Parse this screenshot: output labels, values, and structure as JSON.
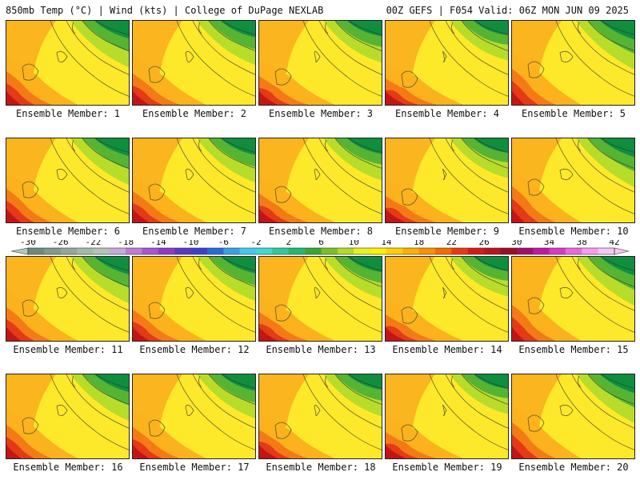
{
  "header": {
    "left": "850mb Temp (°C) | Wind (kts) | College of DuPage NEXLAB",
    "right": "00Z GEFS | F054 Valid: 06Z MON JUN 09 2025"
  },
  "panels": [
    {
      "label": "Ensemble Member: 1"
    },
    {
      "label": "Ensemble Member: 2"
    },
    {
      "label": "Ensemble Member: 3"
    },
    {
      "label": "Ensemble Member: 4"
    },
    {
      "label": "Ensemble Member: 5"
    },
    {
      "label": "Ensemble Member: 6"
    },
    {
      "label": "Ensemble Member: 7"
    },
    {
      "label": "Ensemble Member: 8"
    },
    {
      "label": "Ensemble Member: 9"
    },
    {
      "label": "Ensemble Member: 10"
    },
    {
      "label": "Ensemble Member: 11"
    },
    {
      "label": "Ensemble Member: 12"
    },
    {
      "label": "Ensemble Member: 13"
    },
    {
      "label": "Ensemble Member: 14"
    },
    {
      "label": "Ensemble Member: 15"
    },
    {
      "label": "Ensemble Member: 16"
    },
    {
      "label": "Ensemble Member: 17"
    },
    {
      "label": "Ensemble Member: 18"
    },
    {
      "label": "Ensemble Member: 19"
    },
    {
      "label": "Ensemble Member: 20"
    }
  ],
  "colorbar": {
    "labels": [
      "-30",
      "-26",
      "-22",
      "-18",
      "-14",
      "-10",
      "-6",
      "-2",
      "2",
      "6",
      "10",
      "14",
      "18",
      "22",
      "26",
      "30",
      "34",
      "38",
      "42"
    ],
    "colors": [
      "#6d8a78",
      "#7f9a8a",
      "#93a89a",
      "#a6b8ac",
      "#b5c2ba",
      "#c9a8dc",
      "#c07ad6",
      "#a855d0",
      "#8a3cc8",
      "#5a3bc0",
      "#3d40c8",
      "#2a6ad8",
      "#3aa0e6",
      "#48c7ee",
      "#3fd8d2",
      "#2ec9a0",
      "#24b870",
      "#3aa534",
      "#7abf2a",
      "#b6d82a",
      "#e8ef20",
      "#fff200",
      "#fdd100",
      "#fcb000",
      "#f99000",
      "#f26a00",
      "#e83a10",
      "#d61a1a",
      "#b8141e",
      "#9a0e26",
      "#a0106a",
      "#c018a0",
      "#d838c6",
      "#e868dc",
      "#f49cee",
      "#f6c6f6"
    ],
    "palette": {
      "green_dark": "#0f8f3e",
      "green": "#56b433",
      "lime": "#b8dc2a",
      "yellow": "#fde92a",
      "orange": "#fbb21d",
      "dark_orange": "#f47a16",
      "red": "#e33a17",
      "dark_red": "#c41515"
    }
  }
}
